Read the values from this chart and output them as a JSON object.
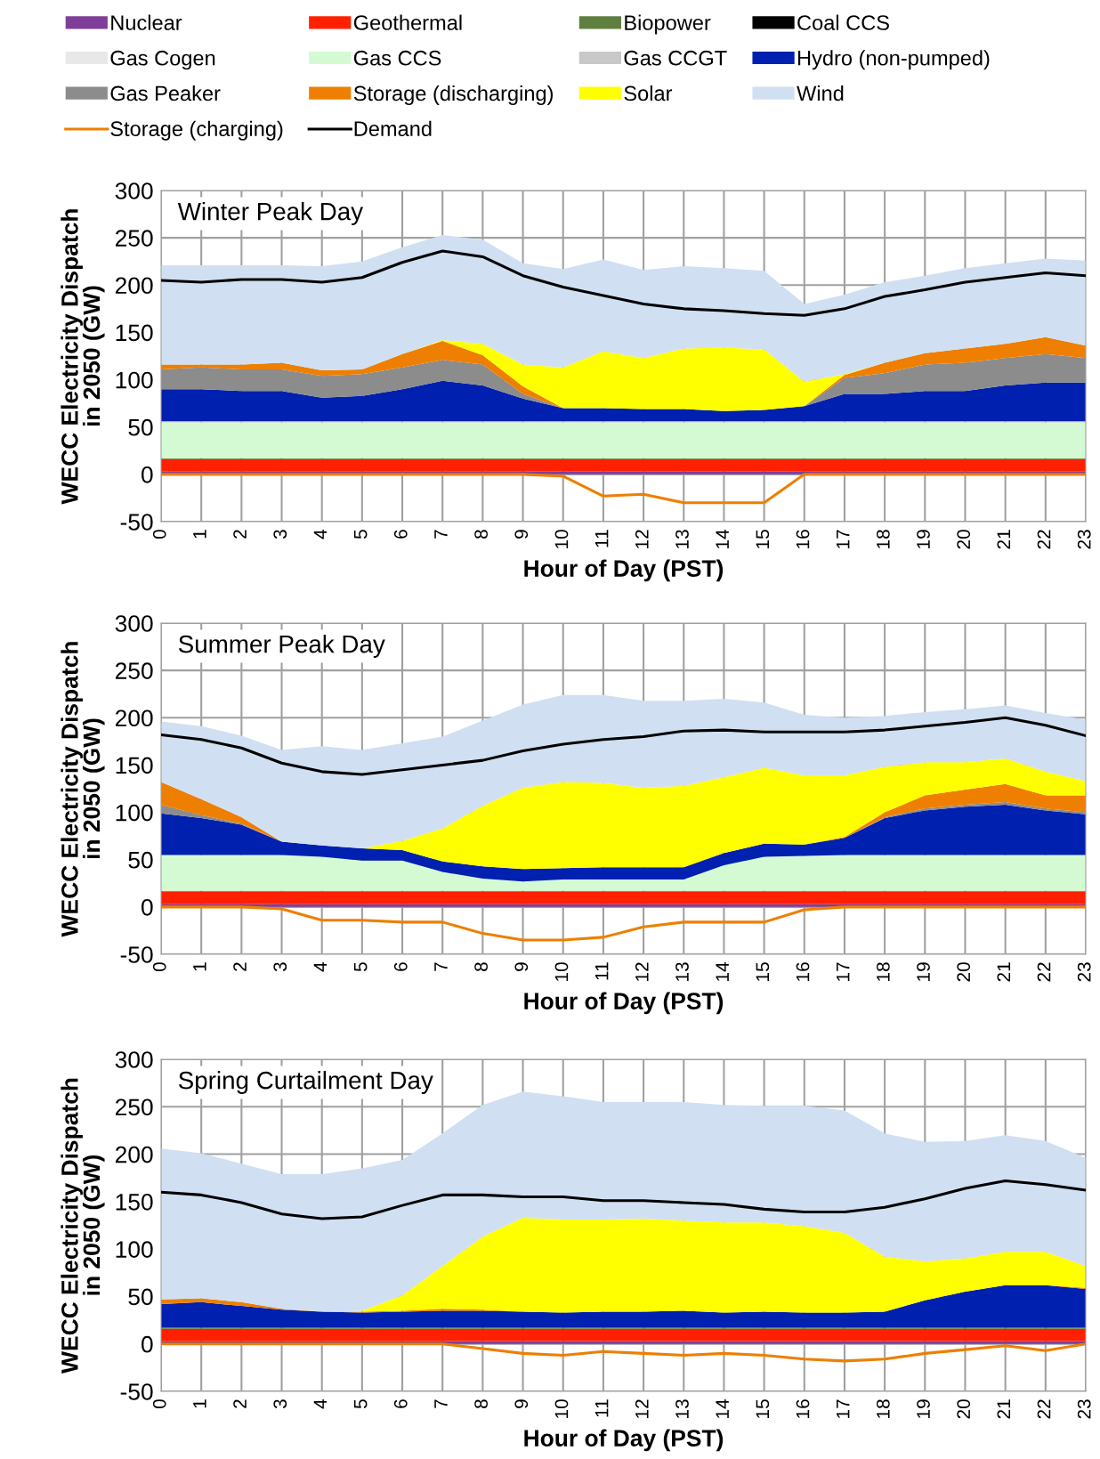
{
  "chart_data": [
    {
      "type": "area",
      "title": "Winter Peak Day",
      "xlabel": "Hour of Day (PST)",
      "ylabel": "WECC Electricity Dispatch\nin 2050 (GW)",
      "stacked": true,
      "legend": "top",
      "grid": true,
      "categories": [
        "0",
        "1",
        "2",
        "3",
        "4",
        "5",
        "6",
        "7",
        "8",
        "9",
        "10",
        "11",
        "12",
        "13",
        "14",
        "15",
        "16",
        "17",
        "18",
        "19",
        "20",
        "21",
        "22",
        "23"
      ],
      "ylim": [
        -50,
        300
      ],
      "yticks": [
        -50,
        0,
        50,
        100,
        150,
        200,
        250,
        300
      ],
      "series": [
        {
          "name": "Nuclear",
          "color": "#7f3f98",
          "values": [
            3,
            3,
            3,
            3,
            3,
            3,
            3,
            3,
            3,
            3,
            3,
            3,
            3,
            3,
            3,
            3,
            3,
            3,
            3,
            3,
            3,
            3,
            3,
            3
          ]
        },
        {
          "name": "Geothermal",
          "color": "#ff2000",
          "values": [
            13,
            13,
            13,
            13,
            13,
            13,
            13,
            13,
            13,
            13,
            13,
            13,
            13,
            13,
            13,
            13,
            13,
            13,
            13,
            13,
            13,
            13,
            13,
            13
          ]
        },
        {
          "name": "Biopower",
          "color": "#5f7f3f",
          "values": [
            1,
            1,
            1,
            1,
            1,
            1,
            1,
            1,
            1,
            1,
            1,
            1,
            1,
            1,
            1,
            1,
            1,
            1,
            1,
            1,
            1,
            1,
            1,
            1
          ]
        },
        {
          "name": "Coal CCS",
          "color": "#000000",
          "values": [
            null,
            null,
            null,
            null,
            null,
            null,
            null,
            null,
            null,
            null,
            null,
            null,
            null,
            null,
            null,
            null,
            null,
            null,
            null,
            null,
            null,
            null,
            null,
            null
          ]
        },
        {
          "name": "Gas Cogen",
          "color": "#e8e8e8",
          "values": [
            null,
            null,
            null,
            null,
            null,
            null,
            null,
            null,
            null,
            null,
            null,
            null,
            null,
            null,
            null,
            null,
            null,
            null,
            null,
            null,
            null,
            null,
            null,
            null
          ]
        },
        {
          "name": "Gas CCS",
          "color": "#d4fad4",
          "values": [
            38,
            38,
            38,
            38,
            38,
            38,
            38,
            38,
            38,
            38,
            38,
            38,
            38,
            38,
            38,
            38,
            38,
            38,
            38,
            38,
            38,
            38,
            38,
            38
          ]
        },
        {
          "name": "Gas CCGT",
          "color": "#c8c8c8",
          "values": [
            1,
            1,
            1,
            1,
            1,
            1,
            1,
            1,
            1,
            1,
            1,
            1,
            1,
            1,
            1,
            1,
            1,
            1,
            1,
            1,
            1,
            1,
            1,
            1
          ]
        },
        {
          "name": "Hydro (non-pumped)",
          "color": "#0020b0",
          "values": [
            34,
            34,
            32,
            32,
            25,
            27,
            34,
            43,
            38,
            24,
            14,
            14,
            13,
            13,
            11,
            12,
            16,
            29,
            29,
            32,
            32,
            38,
            41,
            41
          ]
        },
        {
          "name": "Gas Peaker",
          "color": "#8c8c8c",
          "values": [
            21,
            23,
            23,
            23,
            23,
            23,
            23,
            22,
            22,
            5,
            0,
            null,
            null,
            null,
            null,
            null,
            0,
            17,
            22,
            28,
            30,
            29,
            30,
            26
          ]
        },
        {
          "name": "Storage (discharging)",
          "color": "#ee7f00",
          "values": [
            5,
            3,
            5,
            7,
            6,
            5,
            14,
            20,
            10,
            8,
            0,
            null,
            null,
            null,
            null,
            null,
            0,
            3,
            11,
            12,
            15,
            15,
            18,
            13
          ]
        },
        {
          "name": "Solar",
          "color": "#ffff00",
          "values": [
            null,
            null,
            null,
            null,
            null,
            null,
            0,
            1,
            12,
            23,
            43,
            60,
            54,
            64,
            67,
            64,
            26,
            1,
            0,
            null,
            null,
            null,
            null,
            null
          ]
        },
        {
          "name": "Wind",
          "color": "#d0e0f2",
          "values": [
            105,
            105,
            105,
            103,
            110,
            114,
            113,
            111,
            110,
            107,
            104,
            97,
            93,
            87,
            84,
            83,
            82,
            84,
            85,
            82,
            85,
            85,
            83,
            90
          ]
        },
        {
          "name": "Storage (charging)",
          "type": "line",
          "color": "#ee7f00",
          "values": [
            0,
            0,
            0,
            0,
            0,
            0,
            0,
            0,
            0,
            0,
            -2,
            -23,
            -21,
            -30,
            -30,
            -30,
            0,
            0,
            0,
            0,
            0,
            0,
            0,
            0
          ]
        },
        {
          "name": "Demand",
          "type": "line",
          "color": "#000000",
          "values": [
            205,
            203,
            206,
            206,
            203,
            208,
            224,
            236,
            230,
            210,
            198,
            189,
            180,
            175,
            173,
            170,
            168,
            175,
            188,
            195,
            203,
            208,
            213,
            210
          ]
        }
      ]
    },
    {
      "type": "area",
      "title": "Summer Peak Day",
      "xlabel": "Hour of Day (PST)",
      "ylabel": "WECC Electricity Dispatch\nin 2050 (GW)",
      "stacked": true,
      "grid": true,
      "categories": [
        "0",
        "1",
        "2",
        "3",
        "4",
        "5",
        "6",
        "7",
        "8",
        "9",
        "10",
        "11",
        "12",
        "13",
        "14",
        "15",
        "16",
        "17",
        "18",
        "19",
        "20",
        "21",
        "22",
        "23"
      ],
      "ylim": [
        -50,
        300
      ],
      "yticks": [
        -50,
        0,
        50,
        100,
        150,
        200,
        250,
        300
      ],
      "series": [
        {
          "color": "#7f3f98",
          "values": [
            3,
            3,
            3,
            3,
            3,
            3,
            3,
            3,
            3,
            3,
            3,
            3,
            3,
            3,
            3,
            3,
            3,
            3,
            3,
            3,
            3,
            3,
            3,
            3
          ]
        },
        {
          "color": "#ff2000",
          "values": [
            13,
            13,
            13,
            13,
            13,
            13,
            13,
            13,
            13,
            13,
            13,
            13,
            13,
            13,
            13,
            13,
            13,
            13,
            13,
            13,
            13,
            13,
            13,
            13
          ]
        },
        {
          "color": "#5f7f3f",
          "values": [
            1,
            1,
            1,
            1,
            1,
            1,
            1,
            1,
            1,
            1,
            1,
            1,
            1,
            1,
            1,
            1,
            1,
            1,
            1,
            1,
            1,
            1,
            1,
            1
          ]
        },
        {
          "color": "#000000",
          "values": [
            null,
            null,
            null,
            null,
            null,
            null,
            null,
            null,
            null,
            null,
            null,
            null,
            null,
            null,
            null,
            null,
            null,
            null,
            null,
            null,
            null,
            null,
            null,
            null
          ]
        },
        {
          "color": "#e8e8e8",
          "values": [
            null,
            null,
            null,
            null,
            null,
            null,
            null,
            null,
            null,
            null,
            null,
            null,
            null,
            null,
            null,
            null,
            null,
            null,
            null,
            null,
            null,
            null,
            null,
            null
          ]
        },
        {
          "color": "#d4fad4",
          "values": [
            38,
            38,
            38,
            38,
            36,
            32,
            32,
            20,
            13,
            10,
            12,
            12,
            12,
            12,
            27,
            36,
            37,
            38,
            38,
            38,
            38,
            38,
            38,
            38
          ]
        },
        {
          "color": "#c8c8c8",
          "values": [
            null,
            null,
            null,
            null,
            null,
            null,
            null,
            null,
            null,
            null,
            null,
            null,
            null,
            null,
            null,
            null,
            null,
            null,
            null,
            null,
            null,
            null,
            null,
            null
          ]
        },
        {
          "color": "#0020b0",
          "values": [
            44,
            39,
            32,
            14,
            12,
            13,
            11,
            11,
            13,
            13,
            12,
            13,
            13,
            13,
            13,
            14,
            12,
            18,
            39,
            47,
            51,
            53,
            47,
            43
          ]
        },
        {
          "color": "#8c8c8c",
          "values": [
            9,
            3,
            1,
            0,
            null,
            null,
            null,
            null,
            null,
            null,
            null,
            null,
            null,
            null,
            null,
            null,
            null,
            0,
            1,
            2,
            2,
            3,
            2,
            2
          ]
        },
        {
          "color": "#ee7f00",
          "values": [
            24,
            17,
            7,
            0,
            null,
            null,
            null,
            null,
            null,
            null,
            null,
            null,
            null,
            null,
            null,
            null,
            0,
            1,
            5,
            14,
            16,
            19,
            14,
            18
          ]
        },
        {
          "color": "#ffff00",
          "values": [
            null,
            null,
            null,
            null,
            null,
            0,
            10,
            35,
            64,
            86,
            91,
            89,
            84,
            86,
            80,
            80,
            73,
            65,
            48,
            35,
            29,
            27,
            25,
            15
          ]
        },
        {
          "color": "#d0e0f2",
          "values": [
            64,
            77,
            86,
            97,
            105,
            104,
            103,
            97,
            90,
            88,
            92,
            93,
            92,
            90,
            83,
            69,
            64,
            61,
            54,
            53,
            56,
            56,
            62,
            65
          ]
        },
        {
          "type": "line",
          "color": "#ee7f00",
          "values": [
            0,
            0,
            0,
            -2,
            -14,
            -14,
            -16,
            -16,
            -28,
            -35,
            -35,
            -32,
            -21,
            -16,
            -16,
            -16,
            -3,
            0,
            0,
            0,
            0,
            0,
            0,
            0
          ]
        },
        {
          "type": "line",
          "color": "#000000",
          "values": [
            182,
            177,
            168,
            152,
            143,
            140,
            145,
            150,
            155,
            165,
            172,
            177,
            180,
            186,
            187,
            185,
            185,
            185,
            187,
            191,
            195,
            200,
            192,
            181
          ]
        }
      ]
    },
    {
      "type": "area",
      "title": "Spring Curtailment Day",
      "xlabel": "Hour of Day (PST)",
      "ylabel": "WECC Electricity Dispatch\nin 2050 (GW)",
      "stacked": true,
      "grid": true,
      "categories": [
        "0",
        "1",
        "2",
        "3",
        "4",
        "5",
        "6",
        "7",
        "8",
        "9",
        "10",
        "11",
        "12",
        "13",
        "14",
        "15",
        "16",
        "17",
        "18",
        "19",
        "20",
        "21",
        "22",
        "23"
      ],
      "ylim": [
        -50,
        300
      ],
      "yticks": [
        -50,
        0,
        50,
        100,
        150,
        200,
        250,
        300
      ],
      "series": [
        {
          "color": "#7f3f98",
          "values": [
            3,
            3,
            3,
            3,
            3,
            3,
            3,
            3,
            3,
            3,
            3,
            3,
            3,
            3,
            3,
            3,
            3,
            3,
            3,
            3,
            3,
            3,
            3,
            3
          ]
        },
        {
          "color": "#ff2000",
          "values": [
            13,
            13,
            13,
            13,
            13,
            13,
            13,
            13,
            13,
            13,
            13,
            13,
            13,
            13,
            13,
            13,
            13,
            13,
            13,
            13,
            13,
            13,
            13,
            13
          ]
        },
        {
          "color": "#5f7f3f",
          "values": [
            1,
            1,
            1,
            1,
            1,
            1,
            1,
            1,
            1,
            1,
            1,
            1,
            1,
            1,
            1,
            1,
            1,
            1,
            1,
            1,
            1,
            1,
            1,
            1
          ]
        },
        {
          "color": "#000000",
          "values": [
            null,
            null,
            null,
            null,
            null,
            null,
            null,
            null,
            null,
            null,
            null,
            null,
            null,
            null,
            null,
            null,
            null,
            null,
            null,
            null,
            null,
            null,
            null,
            null
          ]
        },
        {
          "color": "#e8e8e8",
          "values": [
            null,
            null,
            null,
            null,
            null,
            null,
            null,
            null,
            null,
            null,
            null,
            null,
            null,
            null,
            null,
            null,
            null,
            null,
            null,
            null,
            null,
            null,
            null,
            null
          ]
        },
        {
          "color": "#d4fad4",
          "values": [
            null,
            null,
            null,
            null,
            null,
            null,
            null,
            null,
            null,
            null,
            null,
            null,
            null,
            null,
            null,
            null,
            null,
            null,
            null,
            null,
            null,
            null,
            null,
            null
          ]
        },
        {
          "color": "#c8c8c8",
          "values": [
            null,
            null,
            null,
            null,
            null,
            null,
            null,
            null,
            null,
            null,
            null,
            null,
            null,
            null,
            null,
            null,
            null,
            null,
            null,
            null,
            null,
            null,
            null,
            null
          ]
        },
        {
          "color": "#0020b0",
          "values": [
            25,
            27,
            23,
            19,
            17,
            16,
            17,
            18,
            18,
            17,
            16,
            17,
            17,
            18,
            16,
            17,
            16,
            16,
            17,
            29,
            38,
            45,
            45,
            41
          ]
        },
        {
          "color": "#8c8c8c",
          "values": [
            null,
            null,
            null,
            null,
            null,
            null,
            null,
            null,
            null,
            null,
            null,
            null,
            null,
            null,
            null,
            null,
            null,
            null,
            null,
            null,
            null,
            null,
            null,
            null
          ]
        },
        {
          "color": "#ee7f00",
          "values": [
            5,
            4,
            4,
            1,
            0,
            1,
            1,
            2,
            1,
            0,
            null,
            null,
            null,
            null,
            null,
            null,
            null,
            null,
            null,
            null,
            null,
            null,
            0,
            1
          ]
        },
        {
          "color": "#ffff00",
          "values": [
            null,
            null,
            null,
            null,
            0,
            1,
            16,
            45,
            77,
            99,
            98,
            97,
            98,
            95,
            95,
            94,
            91,
            84,
            58,
            41,
            35,
            35,
            35,
            23
          ]
        },
        {
          "color": "#d0e0f2",
          "values": [
            159,
            153,
            146,
            142,
            145,
            150,
            143,
            140,
            139,
            133,
            130,
            124,
            123,
            125,
            124,
            123,
            127,
            129,
            130,
            126,
            124,
            123,
            117,
            114
          ]
        },
        {
          "type": "line",
          "color": "#ee7f00",
          "values": [
            0,
            0,
            0,
            0,
            0,
            0,
            0,
            0,
            -5,
            -10,
            -12,
            -8,
            -10,
            -12,
            -10,
            -12,
            -16,
            -18,
            -16,
            -10,
            -6,
            -2,
            -7,
            0
          ]
        },
        {
          "type": "line",
          "color": "#000000",
          "values": [
            160,
            157,
            149,
            137,
            132,
            134,
            146,
            157,
            157,
            155,
            155,
            151,
            151,
            149,
            147,
            142,
            139,
            139,
            144,
            153,
            164,
            172,
            168,
            162
          ]
        }
      ]
    }
  ]
}
